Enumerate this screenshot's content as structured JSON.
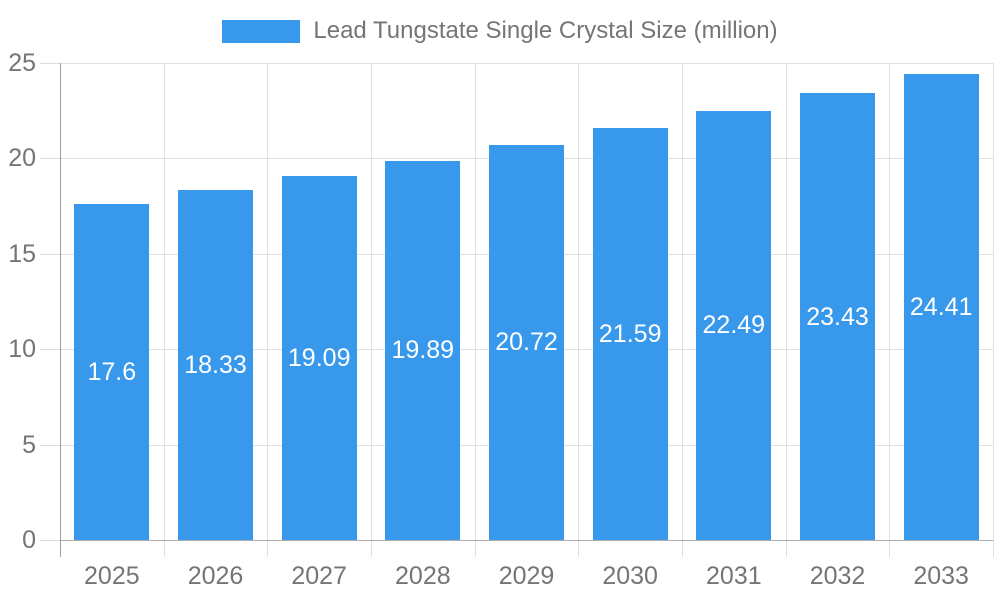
{
  "chart_data": {
    "type": "bar",
    "title": "",
    "legend_label": "Lead Tungstate Single Crystal Size (million)",
    "legend_position": "top",
    "categories": [
      "2025",
      "2026",
      "2027",
      "2028",
      "2029",
      "2030",
      "2031",
      "2032",
      "2033"
    ],
    "series": [
      {
        "name": "Lead Tungstate Single Crystal Size (million)",
        "values": [
          17.6,
          18.33,
          19.09,
          19.89,
          20.72,
          21.59,
          22.49,
          23.43,
          24.41
        ]
      }
    ],
    "xlabel": "",
    "ylabel": "",
    "ylim": [
      0,
      25
    ],
    "yticks": [
      0,
      5,
      10,
      15,
      20,
      25
    ],
    "grid": true,
    "value_labels_shown": true
  },
  "colors": {
    "bar": "#3899EC",
    "bar-label": "#FFFFFF",
    "grid": "#E0E0E0",
    "tick": "#DCDCDC",
    "axis": "#9E9E9E",
    "axis-light": "#ADADAD",
    "text": "#757575",
    "background": "#FFFFFF"
  }
}
